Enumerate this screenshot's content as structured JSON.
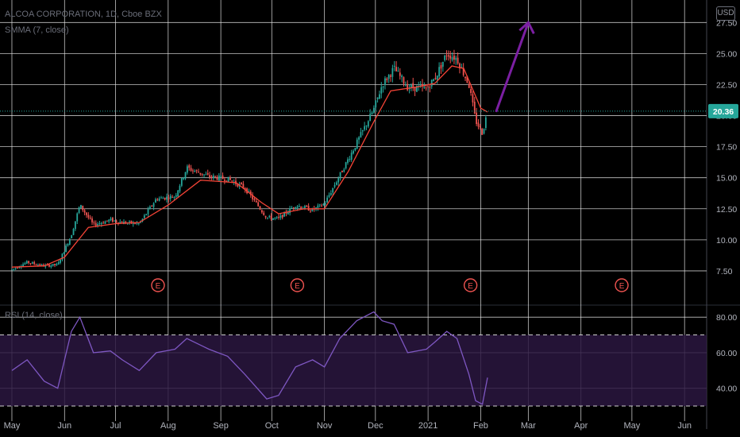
{
  "header": {
    "title": "ALCOA CORPORATION, 1D, Cboe BZX",
    "indicator": "SMMA (7, close)",
    "rsi_label": "RSI (14, close)",
    "currency": "USD"
  },
  "colors": {
    "up": "#26a69a",
    "down": "#ef5350",
    "smma": "#f44336",
    "rsi": "#7e57c2",
    "rsi_band": "#2a1640",
    "arrow": "#7b1fa2",
    "grid": "#e6e6e6",
    "price_tag": "#26a69a",
    "earnings": "#ef5350"
  },
  "chart_data": [
    {
      "type": "candlestick",
      "title": "ALCOA CORPORATION, 1D, Cboe BZX",
      "x_ticks": [
        "May",
        "Jun",
        "Jul",
        "Aug",
        "Sep",
        "Oct",
        "Nov",
        "Dec",
        "2021",
        "Feb",
        "Mar",
        "Apr",
        "May",
        "Jun"
      ],
      "y_ticks": [
        7.5,
        10.0,
        12.5,
        15.0,
        17.5,
        20.0,
        22.5,
        25.0,
        27.5
      ],
      "y_tick_labels": [
        "7.50",
        "10.00",
        "12.50",
        "15.00",
        "17.50",
        "20.00",
        "22.50",
        "25.00",
        "27.50"
      ],
      "ylim": [
        5.0,
        28.8
      ],
      "grid": true,
      "last_price": 20.36,
      "last_price_label": "20.36",
      "earnings_label": "E",
      "earnings_months": [
        "Jul",
        "Oct",
        "Jan",
        "Apr"
      ],
      "close_path": [
        [
          "2020-05-01",
          7.6
        ],
        [
          "2020-05-10",
          8.2
        ],
        [
          "2020-05-20",
          7.9
        ],
        [
          "2020-05-28",
          8.0
        ],
        [
          "2020-06-05",
          10.4
        ],
        [
          "2020-06-10",
          12.8
        ],
        [
          "2020-06-18",
          11.2
        ],
        [
          "2020-06-28",
          11.6
        ],
        [
          "2020-07-05",
          11.4
        ],
        [
          "2020-07-15",
          11.3
        ],
        [
          "2020-07-25",
          13.3
        ],
        [
          "2020-08-05",
          13.5
        ],
        [
          "2020-08-12",
          15.8
        ],
        [
          "2020-08-25",
          15.1
        ],
        [
          "2020-09-05",
          14.9
        ],
        [
          "2020-09-15",
          14.2
        ],
        [
          "2020-09-28",
          11.8
        ],
        [
          "2020-10-05",
          11.7
        ],
        [
          "2020-10-15",
          12.8
        ],
        [
          "2020-10-25",
          12.4
        ],
        [
          "2020-11-01",
          12.9
        ],
        [
          "2020-11-10",
          15.2
        ],
        [
          "2020-11-20",
          17.8
        ],
        [
          "2020-11-30",
          20.5
        ],
        [
          "2020-12-05",
          22.5
        ],
        [
          "2020-12-12",
          23.8
        ],
        [
          "2020-12-20",
          22.3
        ],
        [
          "2020-12-31",
          22.2
        ],
        [
          "2021-01-05",
          23.0
        ],
        [
          "2021-01-12",
          25.0
        ],
        [
          "2021-01-18",
          24.6
        ],
        [
          "2021-01-25",
          22.5
        ],
        [
          "2021-01-29",
          19.6
        ],
        [
          "2021-02-02",
          18.6
        ],
        [
          "2021-02-05",
          20.36
        ]
      ],
      "smma_path": [
        [
          "2020-05-01",
          7.8
        ],
        [
          "2020-05-20",
          7.9
        ],
        [
          "2020-06-01",
          8.6
        ],
        [
          "2020-06-15",
          11.0
        ],
        [
          "2020-07-01",
          11.3
        ],
        [
          "2020-07-15",
          11.4
        ],
        [
          "2020-08-01",
          12.8
        ],
        [
          "2020-08-20",
          14.8
        ],
        [
          "2020-09-10",
          14.6
        ],
        [
          "2020-09-25",
          13.0
        ],
        [
          "2020-10-05",
          12.1
        ],
        [
          "2020-10-20",
          12.5
        ],
        [
          "2020-11-01",
          12.5
        ],
        [
          "2020-11-15",
          15.5
        ],
        [
          "2020-11-30",
          19.5
        ],
        [
          "2020-12-10",
          22.0
        ],
        [
          "2020-12-25",
          22.3
        ],
        [
          "2021-01-05",
          22.6
        ],
        [
          "2021-01-15",
          24.0
        ],
        [
          "2021-01-22",
          23.8
        ],
        [
          "2021-02-01",
          20.6
        ],
        [
          "2021-02-05",
          20.3
        ]
      ],
      "arrow": {
        "from": [
          "2021-02-10",
          20.3
        ],
        "to": [
          "2021-03-01",
          27.5
        ]
      }
    },
    {
      "type": "line",
      "title": "RSI (14, close)",
      "y_ticks": [
        40,
        60,
        80
      ],
      "y_tick_labels": [
        "40.00",
        "60.00",
        "80.00"
      ],
      "ylim": [
        26,
        85
      ],
      "bands": [
        30,
        70
      ],
      "series": [
        {
          "values": [
            [
              "2020-05-01",
              50
            ],
            [
              "2020-05-10",
              56
            ],
            [
              "2020-05-20",
              44
            ],
            [
              "2020-05-28",
              40
            ],
            [
              "2020-06-05",
              72
            ],
            [
              "2020-06-10",
              80
            ],
            [
              "2020-06-18",
              60
            ],
            [
              "2020-06-28",
              61
            ],
            [
              "2020-07-05",
              56
            ],
            [
              "2020-07-15",
              50
            ],
            [
              "2020-07-25",
              60
            ],
            [
              "2020-08-05",
              62
            ],
            [
              "2020-08-12",
              68
            ],
            [
              "2020-08-25",
              62
            ],
            [
              "2020-09-05",
              58
            ],
            [
              "2020-09-15",
              48
            ],
            [
              "2020-09-28",
              34
            ],
            [
              "2020-10-05",
              36
            ],
            [
              "2020-10-15",
              52
            ],
            [
              "2020-10-25",
              56
            ],
            [
              "2020-11-01",
              52
            ],
            [
              "2020-11-10",
              68
            ],
            [
              "2020-11-20",
              78
            ],
            [
              "2020-11-30",
              83
            ],
            [
              "2020-12-05",
              78
            ],
            [
              "2020-12-12",
              76
            ],
            [
              "2020-12-20",
              60
            ],
            [
              "2020-12-31",
              62
            ],
            [
              "2021-01-05",
              66
            ],
            [
              "2021-01-12",
              72
            ],
            [
              "2021-01-18",
              68
            ],
            [
              "2021-01-25",
              48
            ],
            [
              "2021-01-29",
              33
            ],
            [
              "2021-02-02",
              31
            ],
            [
              "2021-02-05",
              46
            ]
          ]
        }
      ]
    }
  ]
}
